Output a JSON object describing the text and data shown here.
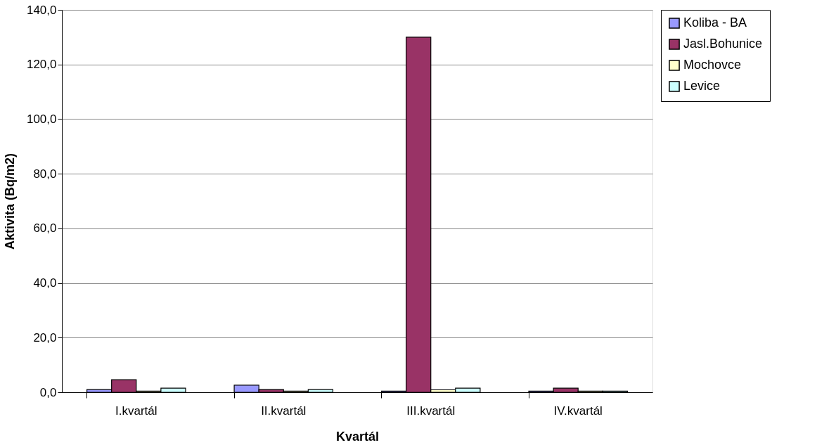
{
  "chart_data": {
    "type": "bar",
    "xlabel": "Kvartál",
    "ylabel": "Aktivita (Bq/m2)",
    "categories": [
      "I.kvartál",
      "II.kvartál",
      "III.kvartál",
      "IV.kvartál"
    ],
    "series": [
      {
        "name": "Koliba - BA",
        "color": "#9999ff",
        "values": [
          1.0,
          2.6,
          0.4,
          0.4
        ]
      },
      {
        "name": "Jasl.Bohunice",
        "color": "#993366",
        "values": [
          4.6,
          1.0,
          130.0,
          1.5
        ]
      },
      {
        "name": "Mochovce",
        "color": "#ffffcc",
        "values": [
          0.4,
          0.4,
          0.9,
          0.4
        ]
      },
      {
        "name": "Levice",
        "color": "#ccffff",
        "values": [
          1.5,
          1.0,
          1.5,
          0.4
        ]
      }
    ],
    "ylim": [
      0,
      140
    ],
    "yticks": [
      {
        "value": 0,
        "label": "0,0"
      },
      {
        "value": 20,
        "label": "20,0"
      },
      {
        "value": 40,
        "label": "40,0"
      },
      {
        "value": 60,
        "label": "60,0"
      },
      {
        "value": 80,
        "label": "80,0"
      },
      {
        "value": 100,
        "label": "100,0"
      },
      {
        "value": 120,
        "label": "120,0"
      },
      {
        "value": 140,
        "label": "140,0"
      }
    ],
    "grid": "y",
    "legend": "right"
  }
}
